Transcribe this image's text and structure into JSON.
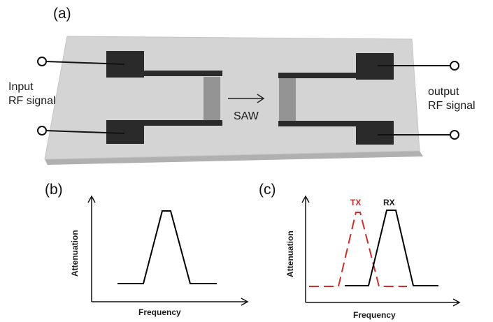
{
  "panels": {
    "a": {
      "label": "(a)",
      "input_label_line1": "Input",
      "input_label_line2": "RF signal",
      "output_label_line1": "output",
      "output_label_line2": "RF signal",
      "wave_label": "SAW"
    },
    "b": {
      "label": "(b)",
      "y_axis_label": "Attenuation",
      "x_axis_label": "Frequency"
    },
    "c": {
      "label": "(c)",
      "y_axis_label": "Attenuation",
      "x_axis_label": "Frequency",
      "tx_label": "TX",
      "rx_label": "RX"
    }
  },
  "colors": {
    "substrate": "#d4d4d4",
    "substrate_edge": "#b0b0b0",
    "electrode": "#2a2a2a",
    "curve": "#000000",
    "tx_curve": "#d42a2a"
  }
}
